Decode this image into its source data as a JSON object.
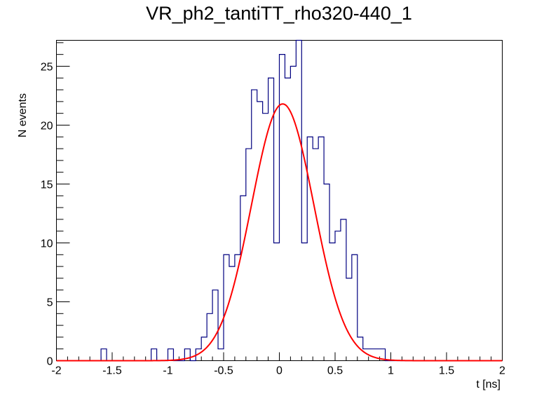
{
  "chart_data": {
    "type": "bar",
    "subtype": "histogram with gaussian fit",
    "title": "VR_ph2_tantiTT_rho320-440_1",
    "xlabel": "t [ns]",
    "ylabel": "N events",
    "xlim": [
      -2,
      2
    ],
    "ylim": [
      0,
      27.2
    ],
    "grid": false,
    "x_ticks": [
      "-2",
      "-1.5",
      "-1",
      "-0.5",
      "0",
      "0.5",
      "1",
      "1.5",
      "2"
    ],
    "y_ticks": [
      "0",
      "5",
      "10",
      "15",
      "20",
      "25"
    ],
    "bin_width": 0.05,
    "series": [
      {
        "kind": "histogram",
        "color": "#000080",
        "bin_low_edges": [
          -1.6,
          -1.15,
          -1.0,
          -0.85,
          -0.75,
          -0.7,
          -0.65,
          -0.6,
          -0.55,
          -0.5,
          -0.45,
          -0.4,
          -0.35,
          -0.3,
          -0.25,
          -0.2,
          -0.15,
          -0.1,
          -0.05,
          0.0,
          0.05,
          0.1,
          0.15,
          0.2,
          0.25,
          0.3,
          0.35,
          0.4,
          0.45,
          0.5,
          0.55,
          0.6,
          0.65,
          0.7,
          0.75,
          0.8,
          0.85,
          0.9
        ],
        "counts": [
          1,
          1,
          1,
          1,
          1,
          2,
          4,
          6,
          1,
          9,
          8,
          9,
          14,
          18,
          23,
          22,
          21,
          24,
          10,
          26,
          24,
          25,
          28,
          10,
          19,
          18,
          19,
          15,
          10,
          11,
          12,
          7,
          9,
          2,
          1,
          1,
          1,
          1
        ]
      },
      {
        "kind": "gaussian fit",
        "color": "#ff0000",
        "amplitude": 21.8,
        "mean": 0.03,
        "sigma": 0.28
      }
    ]
  }
}
